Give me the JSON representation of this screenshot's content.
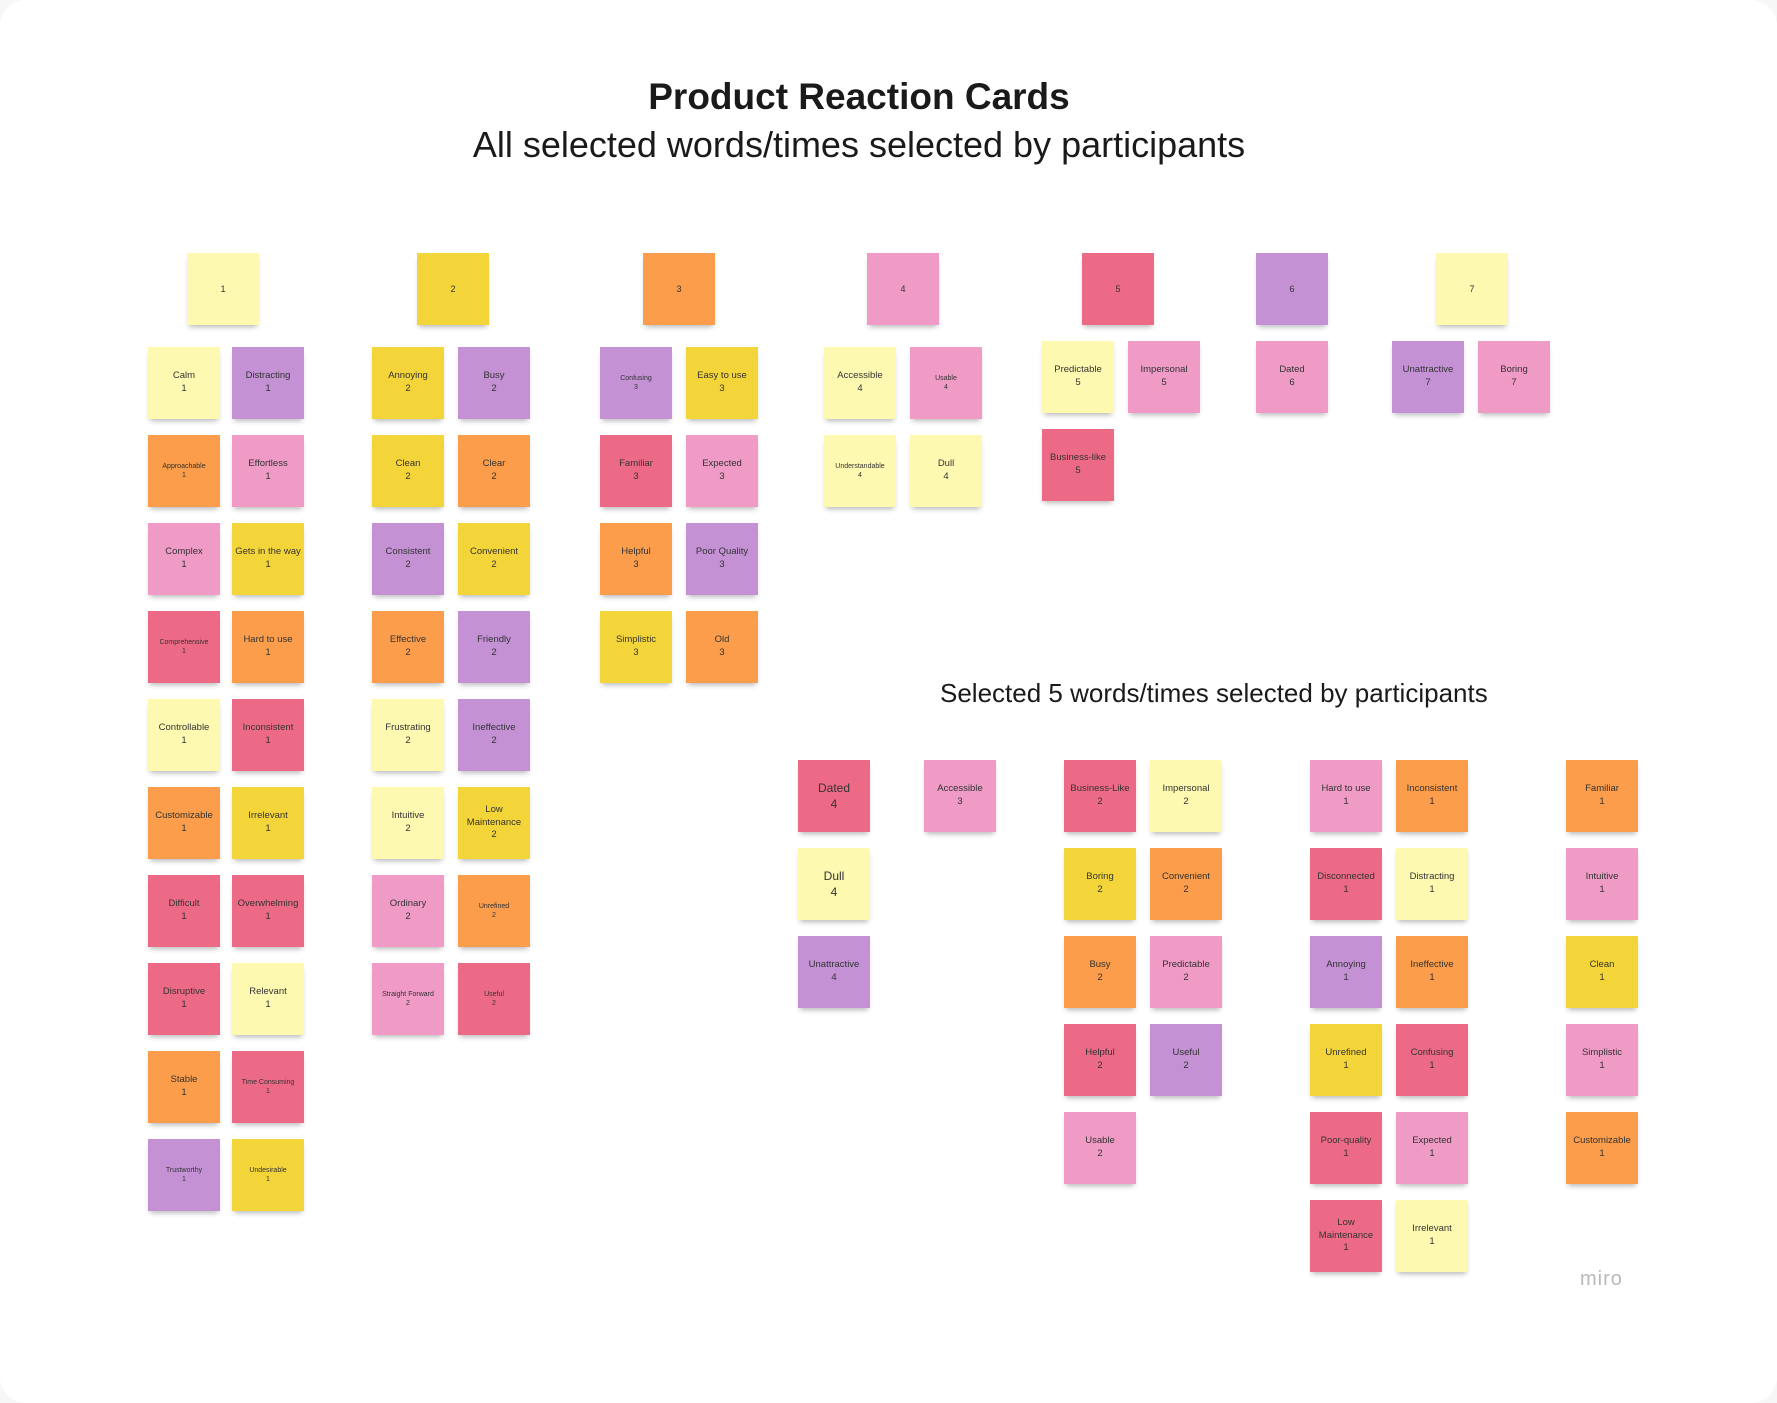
{
  "title": "Product Reaction Cards",
  "subtitle": "All selected words/times selected by participants",
  "section2_title": "Selected 5 words/times selected by participants",
  "brand": "miro",
  "colors": {
    "light_yellow": "#fef9b0",
    "yellow": "#f4d539",
    "orange": "#fb9d4a",
    "pink": "#ef9bc6",
    "red": "#ed6a86",
    "purple": "#c391d4"
  },
  "headers": [
    "1",
    "2",
    "3",
    "4",
    "5",
    "6",
    "7"
  ],
  "group1": [
    {
      "w": "Calm",
      "n": "1"
    },
    {
      "w": "Distracting",
      "n": "1"
    },
    {
      "w": "Approachable",
      "n": "1"
    },
    {
      "w": "Effortless",
      "n": "1"
    },
    {
      "w": "Complex",
      "n": "1"
    },
    {
      "w": "Gets in the way",
      "n": "1"
    },
    {
      "w": "Comprehensive",
      "n": "1"
    },
    {
      "w": "Hard to use",
      "n": "1"
    },
    {
      "w": "Controllable",
      "n": "1"
    },
    {
      "w": "Inconsistent",
      "n": "1"
    },
    {
      "w": "Customizable",
      "n": "1"
    },
    {
      "w": "Irrelevant",
      "n": "1"
    },
    {
      "w": "Difficult",
      "n": "1"
    },
    {
      "w": "Overwhelming",
      "n": "1"
    },
    {
      "w": "Disruptive",
      "n": "1"
    },
    {
      "w": "Relevant",
      "n": "1"
    },
    {
      "w": "Stable",
      "n": "1"
    },
    {
      "w": "Time Consuming",
      "n": "1"
    },
    {
      "w": "Trustworthy",
      "n": "1"
    },
    {
      "w": "Undesirable",
      "n": "1"
    }
  ],
  "group2": [
    {
      "w": "Annoying",
      "n": "2"
    },
    {
      "w": "Busy",
      "n": "2"
    },
    {
      "w": "Clean",
      "n": "2"
    },
    {
      "w": "Clear",
      "n": "2"
    },
    {
      "w": "Consistent",
      "n": "2"
    },
    {
      "w": "Convenient",
      "n": "2"
    },
    {
      "w": "Effective",
      "n": "2"
    },
    {
      "w": "Friendly",
      "n": "2"
    },
    {
      "w": "Frustrating",
      "n": "2"
    },
    {
      "w": "Ineffective",
      "n": "2"
    },
    {
      "w": "Intuitive",
      "n": "2"
    },
    {
      "w": "Low Maintenance",
      "n": "2"
    },
    {
      "w": "Ordinary",
      "n": "2"
    },
    {
      "w": "Unrefined",
      "n": "2"
    },
    {
      "w": "Straight Forward",
      "n": "2"
    },
    {
      "w": "Useful",
      "n": "2"
    }
  ],
  "group3": [
    {
      "w": "Confusing",
      "n": "3"
    },
    {
      "w": "Easy to use",
      "n": "3"
    },
    {
      "w": "Familiar",
      "n": "3"
    },
    {
      "w": "Expected",
      "n": "3"
    },
    {
      "w": "Helpful",
      "n": "3"
    },
    {
      "w": "Poor Quality",
      "n": "3"
    },
    {
      "w": "Simplistic",
      "n": "3"
    },
    {
      "w": "Old",
      "n": "3"
    }
  ],
  "group4": [
    {
      "w": "Accessible",
      "n": "4"
    },
    {
      "w": "Usable",
      "n": "4"
    },
    {
      "w": "Understandable",
      "n": "4"
    },
    {
      "w": "Dull",
      "n": "4"
    }
  ],
  "group5": [
    {
      "w": "Predictable",
      "n": "5"
    },
    {
      "w": "Impersonal",
      "n": "5"
    },
    {
      "w": "Business-like",
      "n": "5"
    }
  ],
  "group6": [
    {
      "w": "Dated",
      "n": "6"
    }
  ],
  "group7": [
    {
      "w": "Unattractive",
      "n": "7"
    },
    {
      "w": "Boring",
      "n": "7"
    }
  ],
  "sel_a": [
    {
      "w": "Dated",
      "n": "4"
    },
    {
      "w": "Dull",
      "n": "4"
    },
    {
      "w": "Unattractive",
      "n": "4"
    }
  ],
  "sel_b": [
    {
      "w": "Accessible",
      "n": "3"
    }
  ],
  "sel_c": [
    {
      "w": "Business-Like",
      "n": "2"
    },
    {
      "w": "Impersonal",
      "n": "2"
    },
    {
      "w": "Boring",
      "n": "2"
    },
    {
      "w": "Convenient",
      "n": "2"
    },
    {
      "w": "Busy",
      "n": "2"
    },
    {
      "w": "Predictable",
      "n": "2"
    },
    {
      "w": "Helpful",
      "n": "2"
    },
    {
      "w": "Useful",
      "n": "2"
    },
    {
      "w": "Usable",
      "n": "2"
    }
  ],
  "sel_d": [
    {
      "w": "Hard to use",
      "n": "1"
    },
    {
      "w": "Inconsistent",
      "n": "1"
    },
    {
      "w": "Disconnected",
      "n": "1"
    },
    {
      "w": "Distracting",
      "n": "1"
    },
    {
      "w": "Annoying",
      "n": "1"
    },
    {
      "w": "Ineffective",
      "n": "1"
    },
    {
      "w": "Unrefined",
      "n": "1"
    },
    {
      "w": "Confusing",
      "n": "1"
    },
    {
      "w": "Poor-quality",
      "n": "1"
    },
    {
      "w": "Expected",
      "n": "1"
    },
    {
      "w": "Low Maintenance",
      "n": "1"
    },
    {
      "w": "Irrelevant",
      "n": "1"
    }
  ],
  "sel_e": [
    {
      "w": "Familiar",
      "n": "1"
    },
    {
      "w": "Intuitive",
      "n": "1"
    },
    {
      "w": "Clean",
      "n": "1"
    },
    {
      "w": "Simplistic",
      "n": "1"
    },
    {
      "w": "Customizable",
      "n": "1"
    }
  ]
}
